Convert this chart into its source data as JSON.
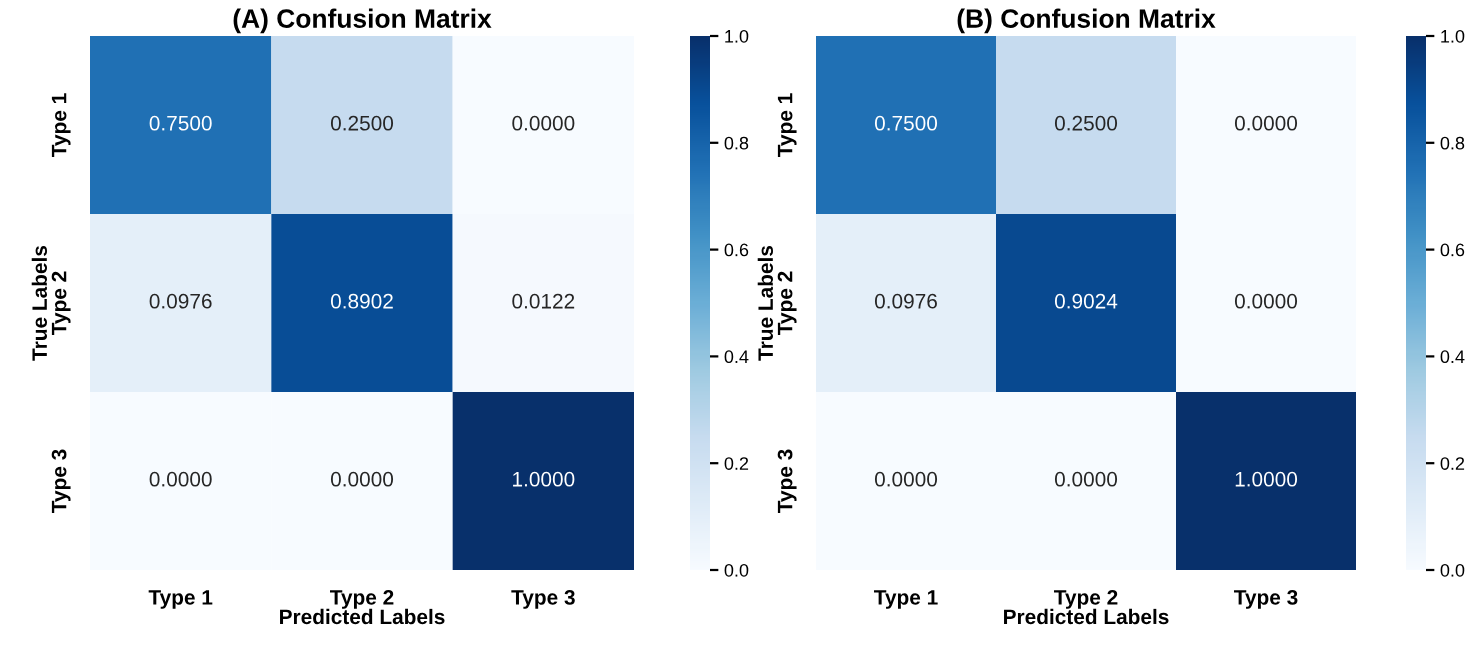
{
  "chart_data": [
    {
      "type": "heatmap",
      "title": "(A) Confusion Matrix",
      "xlabel": "Predicted Labels",
      "ylabel": "True Labels",
      "categories": [
        "Type 1",
        "Type 2",
        "Type 3"
      ],
      "y_categories": [
        "Type 1",
        "Type 2",
        "Type 3"
      ],
      "cells": [
        [
          0.75,
          0.25,
          0.0
        ],
        [
          0.0976,
          0.8902,
          0.0122
        ],
        [
          0.0,
          0.0,
          1.0
        ]
      ],
      "cell_labels": [
        [
          "0.7500",
          "0.2500",
          "0.0000"
        ],
        [
          "0.0976",
          "0.8902",
          "0.0122"
        ],
        [
          "0.0000",
          "0.0000",
          "1.0000"
        ]
      ],
      "clim": [
        0,
        1
      ],
      "cticks": [
        {
          "value": 0,
          "label": "0.0"
        },
        {
          "value": 0.2,
          "label": "0.2"
        },
        {
          "value": 0.4,
          "label": "0.4"
        },
        {
          "value": 0.6,
          "label": "0.6"
        },
        {
          "value": 0.8,
          "label": "0.8"
        },
        {
          "value": 1,
          "label": "1.0"
        }
      ]
    },
    {
      "type": "heatmap",
      "title": "(B) Confusion Matrix",
      "xlabel": "Predicted Labels",
      "ylabel": "True Labels",
      "categories": [
        "Type 1",
        "Type 2",
        "Type 3"
      ],
      "y_categories": [
        "Type 1",
        "Type 2",
        "Type 3"
      ],
      "cells": [
        [
          0.75,
          0.25,
          0.0
        ],
        [
          0.0976,
          0.9024,
          0.0
        ],
        [
          0.0,
          0.0,
          1.0
        ]
      ],
      "cell_labels": [
        [
          "0.7500",
          "0.2500",
          "0.0000"
        ],
        [
          "0.0976",
          "0.9024",
          "0.0000"
        ],
        [
          "0.0000",
          "0.0000",
          "1.0000"
        ]
      ],
      "clim": [
        0,
        1
      ],
      "cticks": [
        {
          "value": 0,
          "label": "0.0"
        },
        {
          "value": 0.2,
          "label": "0.2"
        },
        {
          "value": 0.4,
          "label": "0.4"
        },
        {
          "value": 0.6,
          "label": "0.6"
        },
        {
          "value": 0.8,
          "label": "0.8"
        },
        {
          "value": 1,
          "label": "1.0"
        }
      ]
    }
  ]
}
